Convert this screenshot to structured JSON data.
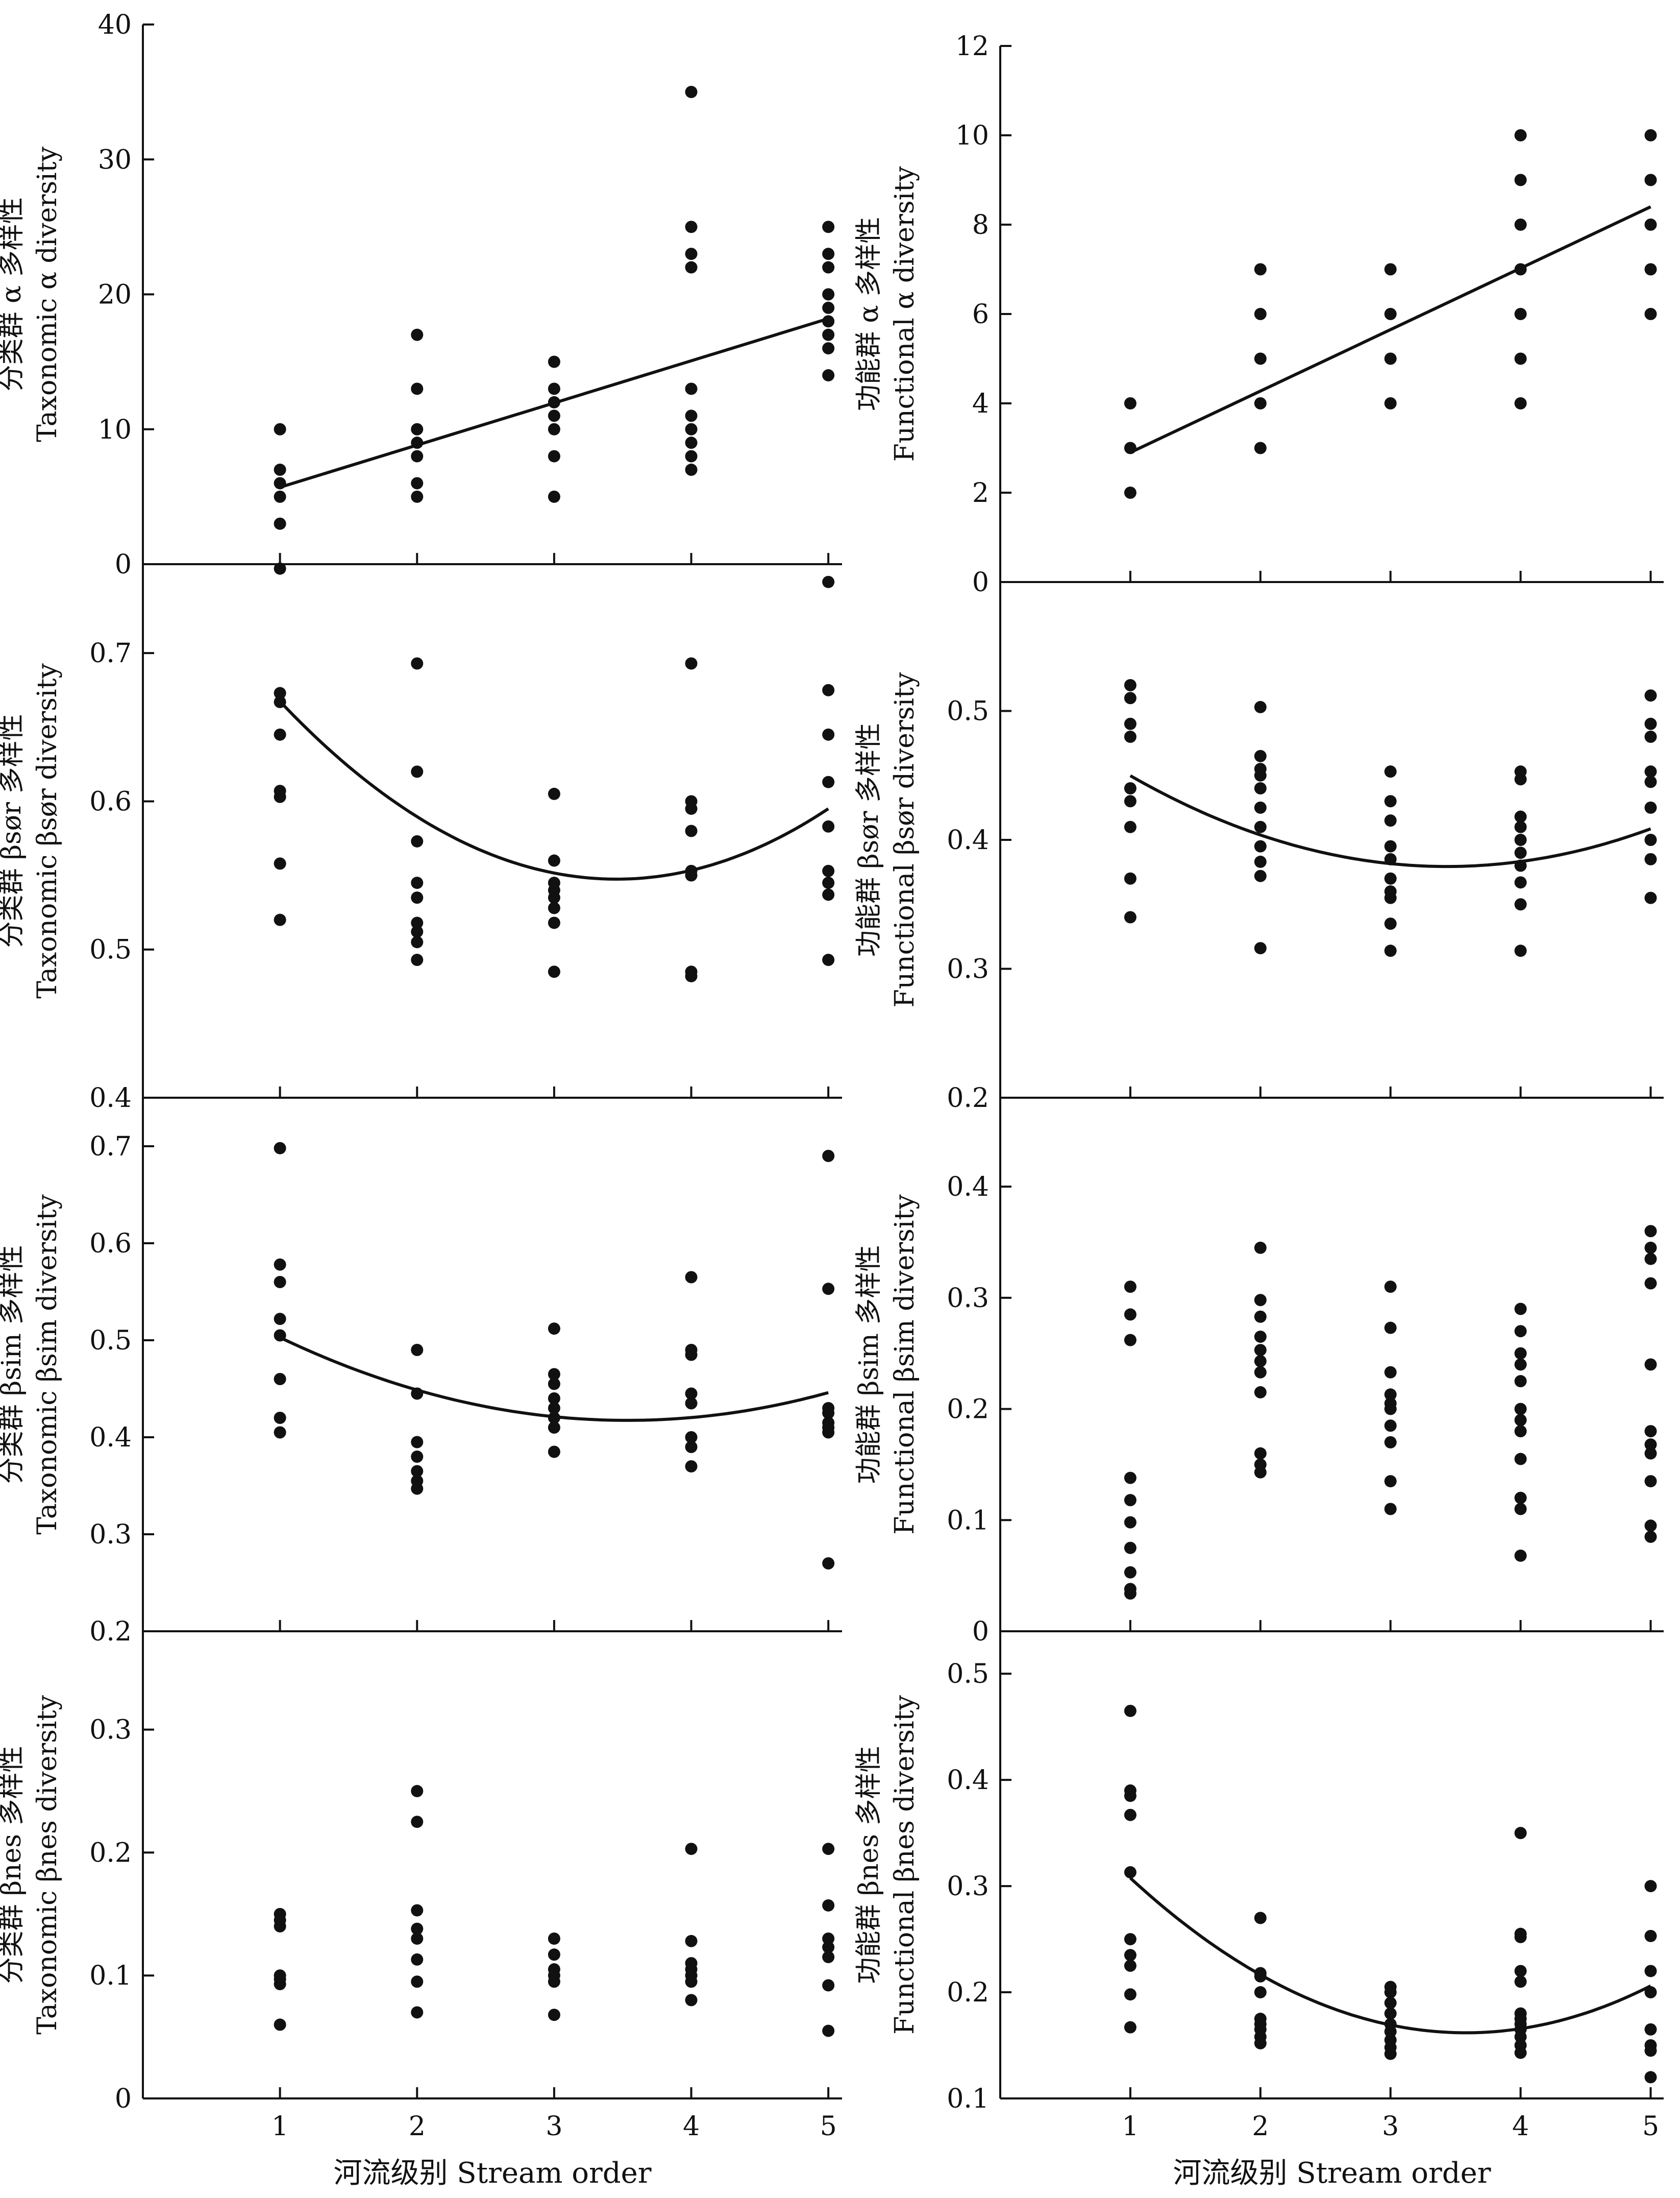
{
  "chart_data": [
    {
      "type": "scatter",
      "ylabel_zh": "分类群 α 多样性",
      "ylabel_en": "Taxonomic α diversity",
      "ylim": [
        0,
        40
      ],
      "yticks": [
        "0",
        "10",
        "20",
        "30",
        "40"
      ],
      "xlim": [
        0,
        5.1
      ],
      "xticks": [],
      "trend": "linear",
      "points": [
        [
          1,
          10
        ],
        [
          1,
          7
        ],
        [
          1,
          6
        ],
        [
          1,
          5
        ],
        [
          1,
          3
        ],
        [
          2,
          17
        ],
        [
          2,
          13
        ],
        [
          2,
          10
        ],
        [
          2,
          9
        ],
        [
          2,
          8
        ],
        [
          2,
          6
        ],
        [
          2,
          5
        ],
        [
          3,
          15
        ],
        [
          3,
          13
        ],
        [
          3,
          12
        ],
        [
          3,
          11
        ],
        [
          3,
          10
        ],
        [
          3,
          8
        ],
        [
          3,
          5
        ],
        [
          4,
          35
        ],
        [
          4,
          25
        ],
        [
          4,
          23
        ],
        [
          4,
          22
        ],
        [
          4,
          13
        ],
        [
          4,
          11
        ],
        [
          4,
          10
        ],
        [
          4,
          9
        ],
        [
          4,
          8
        ],
        [
          4,
          7
        ],
        [
          5,
          25
        ],
        [
          5,
          23
        ],
        [
          5,
          22
        ],
        [
          5,
          20
        ],
        [
          5,
          19
        ],
        [
          5,
          18
        ],
        [
          5,
          17
        ],
        [
          5,
          16
        ],
        [
          5,
          14
        ]
      ],
      "fit": [
        [
          1,
          5.7
        ],
        [
          5,
          18.2
        ]
      ]
    },
    {
      "type": "scatter",
      "ylabel_zh": "功能群 α 多样性",
      "ylabel_en": "Functional α diversity",
      "ylim": [
        0,
        12
      ],
      "yticks": [
        "0",
        "2",
        "4",
        "6",
        "8",
        "10",
        "12"
      ],
      "xlim": [
        0,
        5.1
      ],
      "xticks": [],
      "trend": "linear",
      "points": [
        [
          1,
          4
        ],
        [
          1,
          3
        ],
        [
          1,
          2
        ],
        [
          2,
          7
        ],
        [
          2,
          6
        ],
        [
          2,
          5
        ],
        [
          2,
          4
        ],
        [
          2,
          3
        ],
        [
          3,
          7
        ],
        [
          3,
          6
        ],
        [
          3,
          5
        ],
        [
          3,
          4
        ],
        [
          4,
          10
        ],
        [
          4,
          9
        ],
        [
          4,
          8
        ],
        [
          4,
          7
        ],
        [
          4,
          6
        ],
        [
          4,
          5
        ],
        [
          4,
          4
        ],
        [
          5,
          10
        ],
        [
          5,
          9
        ],
        [
          5,
          8
        ],
        [
          5,
          7
        ],
        [
          5,
          6
        ]
      ],
      "fit": [
        [
          1,
          2.9
        ],
        [
          5,
          8.4
        ]
      ]
    },
    {
      "type": "scatter",
      "ylabel_zh": "分类群 βsør 多样性",
      "ylabel_en": "Taxonomic βsør diversity",
      "ylim": [
        0.4,
        0.76
      ],
      "yticks": [
        "0.4",
        "0.5",
        "0.6",
        "0.7"
      ],
      "xlim": [
        0,
        5.1
      ],
      "xticks": [],
      "trend": "quadratic",
      "points": [
        [
          1,
          0.757
        ],
        [
          1,
          0.673
        ],
        [
          1,
          0.667
        ],
        [
          1,
          0.645
        ],
        [
          1,
          0.607
        ],
        [
          1,
          0.603
        ],
        [
          1,
          0.558
        ],
        [
          1,
          0.52
        ],
        [
          2,
          0.693
        ],
        [
          2,
          0.62
        ],
        [
          2,
          0.573
        ],
        [
          2,
          0.545
        ],
        [
          2,
          0.535
        ],
        [
          2,
          0.518
        ],
        [
          2,
          0.512
        ],
        [
          2,
          0.505
        ],
        [
          2,
          0.493
        ],
        [
          3,
          0.605
        ],
        [
          3,
          0.56
        ],
        [
          3,
          0.545
        ],
        [
          3,
          0.54
        ],
        [
          3,
          0.535
        ],
        [
          3,
          0.528
        ],
        [
          3,
          0.518
        ],
        [
          3,
          0.485
        ],
        [
          4,
          0.693
        ],
        [
          4,
          0.6
        ],
        [
          4,
          0.595
        ],
        [
          4,
          0.58
        ],
        [
          4,
          0.553
        ],
        [
          4,
          0.55
        ],
        [
          4,
          0.485
        ],
        [
          4,
          0.482
        ],
        [
          5,
          0.748
        ],
        [
          5,
          0.675
        ],
        [
          5,
          0.645
        ],
        [
          5,
          0.613
        ],
        [
          5,
          0.583
        ],
        [
          5,
          0.553
        ],
        [
          5,
          0.545
        ],
        [
          5,
          0.537
        ],
        [
          5,
          0.493
        ]
      ],
      "fit_coeffs": [
        0.785,
        -0.1375,
        0.0199
      ]
    },
    {
      "type": "scatter",
      "ylabel_zh": "功能群 βsør 多样性",
      "ylabel_en": "Functional βsør diversity",
      "ylim": [
        0.2,
        0.6
      ],
      "yticks": [
        "0.2",
        "0.3",
        "0.4",
        "0.5"
      ],
      "xlim": [
        0,
        5.1
      ],
      "xticks": [],
      "trend": "quadratic",
      "points": [
        [
          1,
          0.52
        ],
        [
          1,
          0.51
        ],
        [
          1,
          0.49
        ],
        [
          1,
          0.48
        ],
        [
          1,
          0.44
        ],
        [
          1,
          0.43
        ],
        [
          1,
          0.41
        ],
        [
          1,
          0.37
        ],
        [
          1,
          0.34
        ],
        [
          2,
          0.503
        ],
        [
          2,
          0.465
        ],
        [
          2,
          0.455
        ],
        [
          2,
          0.45
        ],
        [
          2,
          0.44
        ],
        [
          2,
          0.425
        ],
        [
          2,
          0.41
        ],
        [
          2,
          0.395
        ],
        [
          2,
          0.383
        ],
        [
          2,
          0.372
        ],
        [
          2,
          0.316
        ],
        [
          3,
          0.453
        ],
        [
          3,
          0.43
        ],
        [
          3,
          0.415
        ],
        [
          3,
          0.395
        ],
        [
          3,
          0.385
        ],
        [
          3,
          0.37
        ],
        [
          3,
          0.36
        ],
        [
          3,
          0.355
        ],
        [
          3,
          0.335
        ],
        [
          3,
          0.314
        ],
        [
          4,
          0.453
        ],
        [
          4,
          0.447
        ],
        [
          4,
          0.418
        ],
        [
          4,
          0.41
        ],
        [
          4,
          0.4
        ],
        [
          4,
          0.39
        ],
        [
          4,
          0.38
        ],
        [
          4,
          0.367
        ],
        [
          4,
          0.35
        ],
        [
          4,
          0.314
        ],
        [
          5,
          0.512
        ],
        [
          5,
          0.49
        ],
        [
          5,
          0.48
        ],
        [
          5,
          0.453
        ],
        [
          5,
          0.445
        ],
        [
          5,
          0.425
        ],
        [
          5,
          0.4
        ],
        [
          5,
          0.385
        ],
        [
          5,
          0.355
        ]
      ],
      "fit_coeffs": [
        0.5196,
        -0.0817,
        0.0119
      ]
    },
    {
      "type": "scatter",
      "ylabel_zh": "分类群 βsim 多样性",
      "ylabel_en": "Taxonomic βsim diversity",
      "ylim": [
        0.2,
        0.75
      ],
      "yticks": [
        "0.2",
        "0.3",
        "0.4",
        "0.5",
        "0.6",
        "0.7"
      ],
      "xlim": [
        0,
        5.1
      ],
      "xticks": [],
      "trend": "quadratic",
      "points": [
        [
          1,
          0.698
        ],
        [
          1,
          0.578
        ],
        [
          1,
          0.56
        ],
        [
          1,
          0.522
        ],
        [
          1,
          0.505
        ],
        [
          1,
          0.46
        ],
        [
          1,
          0.42
        ],
        [
          1,
          0.405
        ],
        [
          2,
          0.49
        ],
        [
          2,
          0.445
        ],
        [
          2,
          0.395
        ],
        [
          2,
          0.38
        ],
        [
          2,
          0.365
        ],
        [
          2,
          0.355
        ],
        [
          2,
          0.347
        ],
        [
          3,
          0.512
        ],
        [
          3,
          0.465
        ],
        [
          3,
          0.455
        ],
        [
          3,
          0.44
        ],
        [
          3,
          0.43
        ],
        [
          3,
          0.42
        ],
        [
          3,
          0.41
        ],
        [
          3,
          0.385
        ],
        [
          4,
          0.565
        ],
        [
          4,
          0.49
        ],
        [
          4,
          0.485
        ],
        [
          4,
          0.445
        ],
        [
          4,
          0.435
        ],
        [
          4,
          0.4
        ],
        [
          4,
          0.39
        ],
        [
          4,
          0.37
        ],
        [
          5,
          0.69
        ],
        [
          5,
          0.553
        ],
        [
          5,
          0.43
        ],
        [
          5,
          0.425
        ],
        [
          5,
          0.415
        ],
        [
          5,
          0.41
        ],
        [
          5,
          0.405
        ],
        [
          5,
          0.27
        ]
      ],
      "fit_coeffs": [
        0.5835,
        -0.094,
        0.0133
      ]
    },
    {
      "type": "scatter",
      "ylabel_zh": "功能群 βsim 多样性",
      "ylabel_en": "Functional βsim diversity",
      "ylim": [
        0,
        0.48
      ],
      "yticks": [
        "0",
        "0.1",
        "0.2",
        "0.3",
        "0.4"
      ],
      "xlim": [
        0,
        5.1
      ],
      "xticks": [],
      "trend": "none",
      "points": [
        [
          1,
          0.31
        ],
        [
          1,
          0.285
        ],
        [
          1,
          0.262
        ],
        [
          1,
          0.138
        ],
        [
          1,
          0.118
        ],
        [
          1,
          0.098
        ],
        [
          1,
          0.075
        ],
        [
          1,
          0.053
        ],
        [
          1,
          0.038
        ],
        [
          1,
          0.034
        ],
        [
          2,
          0.345
        ],
        [
          2,
          0.298
        ],
        [
          2,
          0.283
        ],
        [
          2,
          0.265
        ],
        [
          2,
          0.253
        ],
        [
          2,
          0.243
        ],
        [
          2,
          0.233
        ],
        [
          2,
          0.215
        ],
        [
          2,
          0.16
        ],
        [
          2,
          0.15
        ],
        [
          2,
          0.143
        ],
        [
          3,
          0.31
        ],
        [
          3,
          0.273
        ],
        [
          3,
          0.233
        ],
        [
          3,
          0.213
        ],
        [
          3,
          0.205
        ],
        [
          3,
          0.2
        ],
        [
          3,
          0.185
        ],
        [
          3,
          0.17
        ],
        [
          3,
          0.135
        ],
        [
          3,
          0.11
        ],
        [
          4,
          0.29
        ],
        [
          4,
          0.27
        ],
        [
          4,
          0.25
        ],
        [
          4,
          0.24
        ],
        [
          4,
          0.225
        ],
        [
          4,
          0.2
        ],
        [
          4,
          0.19
        ],
        [
          4,
          0.18
        ],
        [
          4,
          0.155
        ],
        [
          4,
          0.12
        ],
        [
          4,
          0.11
        ],
        [
          4,
          0.068
        ],
        [
          5,
          0.36
        ],
        [
          5,
          0.345
        ],
        [
          5,
          0.335
        ],
        [
          5,
          0.313
        ],
        [
          5,
          0.24
        ],
        [
          5,
          0.18
        ],
        [
          5,
          0.168
        ],
        [
          5,
          0.16
        ],
        [
          5,
          0.135
        ],
        [
          5,
          0.095
        ],
        [
          5,
          0.085
        ]
      ]
    },
    {
      "type": "scatter",
      "ylabel_zh": "分类群 βnes 多样性",
      "ylabel_en": "Taxonomic βnes diversity",
      "ylim": [
        0,
        0.38
      ],
      "yticks": [
        "0",
        "0.1",
        "0.2",
        "0.3"
      ],
      "xlim": [
        0,
        5.1
      ],
      "xticks": [
        "1",
        "2",
        "3",
        "4",
        "5"
      ],
      "xlabel": "河流级别 Stream order",
      "trend": "none",
      "points": [
        [
          1,
          0.15
        ],
        [
          1,
          0.145
        ],
        [
          1,
          0.14
        ],
        [
          1,
          0.1
        ],
        [
          1,
          0.097
        ],
        [
          1,
          0.093
        ],
        [
          1,
          0.06
        ],
        [
          2,
          0.25
        ],
        [
          2,
          0.225
        ],
        [
          2,
          0.153
        ],
        [
          2,
          0.138
        ],
        [
          2,
          0.13
        ],
        [
          2,
          0.113
        ],
        [
          2,
          0.095
        ],
        [
          2,
          0.07
        ],
        [
          3,
          0.13
        ],
        [
          3,
          0.117
        ],
        [
          3,
          0.105
        ],
        [
          3,
          0.1
        ],
        [
          3,
          0.095
        ],
        [
          3,
          0.068
        ],
        [
          4,
          0.203
        ],
        [
          4,
          0.128
        ],
        [
          4,
          0.11
        ],
        [
          4,
          0.105
        ],
        [
          4,
          0.1
        ],
        [
          4,
          0.095
        ],
        [
          4,
          0.08
        ],
        [
          5,
          0.203
        ],
        [
          5,
          0.157
        ],
        [
          5,
          0.13
        ],
        [
          5,
          0.123
        ],
        [
          5,
          0.115
        ],
        [
          5,
          0.092
        ],
        [
          5,
          0.055
        ]
      ]
    },
    {
      "type": "scatter",
      "ylabel_zh": "功能群 βnes 多样性",
      "ylabel_en": "Functional βnes diversity",
      "ylim": [
        0.1,
        0.54
      ],
      "yticks": [
        "0.1",
        "0.2",
        "0.3",
        "0.4",
        "0.5"
      ],
      "xlim": [
        0,
        5.1
      ],
      "xticks": [
        "1",
        "2",
        "3",
        "4",
        "5"
      ],
      "xlabel": "河流级别 Stream order",
      "trend": "quadratic",
      "points": [
        [
          1,
          0.465
        ],
        [
          1,
          0.39
        ],
        [
          1,
          0.385
        ],
        [
          1,
          0.367
        ],
        [
          1,
          0.313
        ],
        [
          1,
          0.25
        ],
        [
          1,
          0.235
        ],
        [
          1,
          0.225
        ],
        [
          1,
          0.198
        ],
        [
          1,
          0.167
        ],
        [
          2,
          0.27
        ],
        [
          2,
          0.218
        ],
        [
          2,
          0.215
        ],
        [
          2,
          0.2
        ],
        [
          2,
          0.175
        ],
        [
          2,
          0.17
        ],
        [
          2,
          0.165
        ],
        [
          2,
          0.158
        ],
        [
          2,
          0.152
        ],
        [
          3,
          0.205
        ],
        [
          3,
          0.2
        ],
        [
          3,
          0.19
        ],
        [
          3,
          0.18
        ],
        [
          3,
          0.17
        ],
        [
          3,
          0.163
        ],
        [
          3,
          0.155
        ],
        [
          3,
          0.148
        ],
        [
          3,
          0.142
        ],
        [
          4,
          0.35
        ],
        [
          4,
          0.255
        ],
        [
          4,
          0.252
        ],
        [
          4,
          0.22
        ],
        [
          4,
          0.21
        ],
        [
          4,
          0.18
        ],
        [
          4,
          0.175
        ],
        [
          4,
          0.17
        ],
        [
          4,
          0.165
        ],
        [
          4,
          0.158
        ],
        [
          4,
          0.15
        ],
        [
          4,
          0.143
        ],
        [
          5,
          0.3
        ],
        [
          5,
          0.253
        ],
        [
          5,
          0.22
        ],
        [
          5,
          0.2
        ],
        [
          5,
          0.165
        ],
        [
          5,
          0.15
        ],
        [
          5,
          0.145
        ],
        [
          5,
          0.12
        ]
      ],
      "fit_coeffs": [
        0.4425,
        -0.1568,
        0.0219
      ]
    }
  ]
}
